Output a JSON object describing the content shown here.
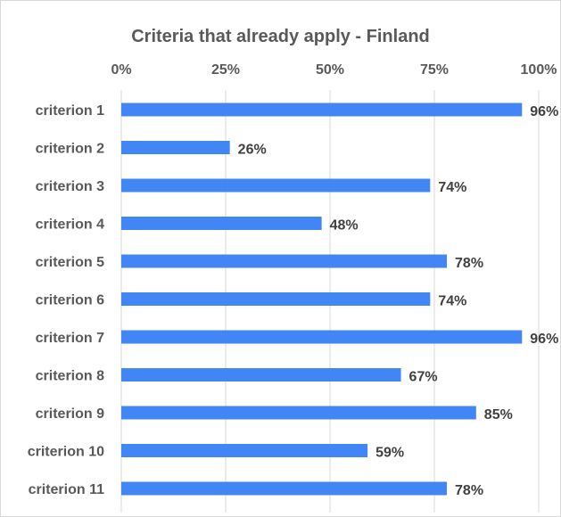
{
  "chart_data": {
    "type": "bar",
    "orientation": "horizontal",
    "title": "Criteria that already apply - Finland",
    "xlabel": "",
    "ylabel": "",
    "categories": [
      "criterion 1",
      "criterion 2",
      "criterion 3",
      "criterion 4",
      "criterion 5",
      "criterion 6",
      "criterion 7",
      "criterion 8",
      "criterion 9",
      "criterion 10",
      "criterion 11"
    ],
    "values": [
      96,
      26,
      74,
      48,
      78,
      74,
      96,
      67,
      85,
      59,
      78
    ],
    "data_labels": [
      "96%",
      "26%",
      "74%",
      "48%",
      "78%",
      "74%",
      "96%",
      "67%",
      "85%",
      "59%",
      "78%"
    ],
    "xlim": [
      0,
      100
    ],
    "x_ticks": [
      0,
      25,
      50,
      75,
      100
    ],
    "x_tick_labels": [
      "0%",
      "25%",
      "50%",
      "75%",
      "100%"
    ],
    "x_axis_position": "top",
    "grid": true,
    "legend": "none",
    "colors": {
      "bar": "#4285f4",
      "grid": "#d9d9d9",
      "text": "#595959",
      "data_label": "#404040"
    }
  }
}
